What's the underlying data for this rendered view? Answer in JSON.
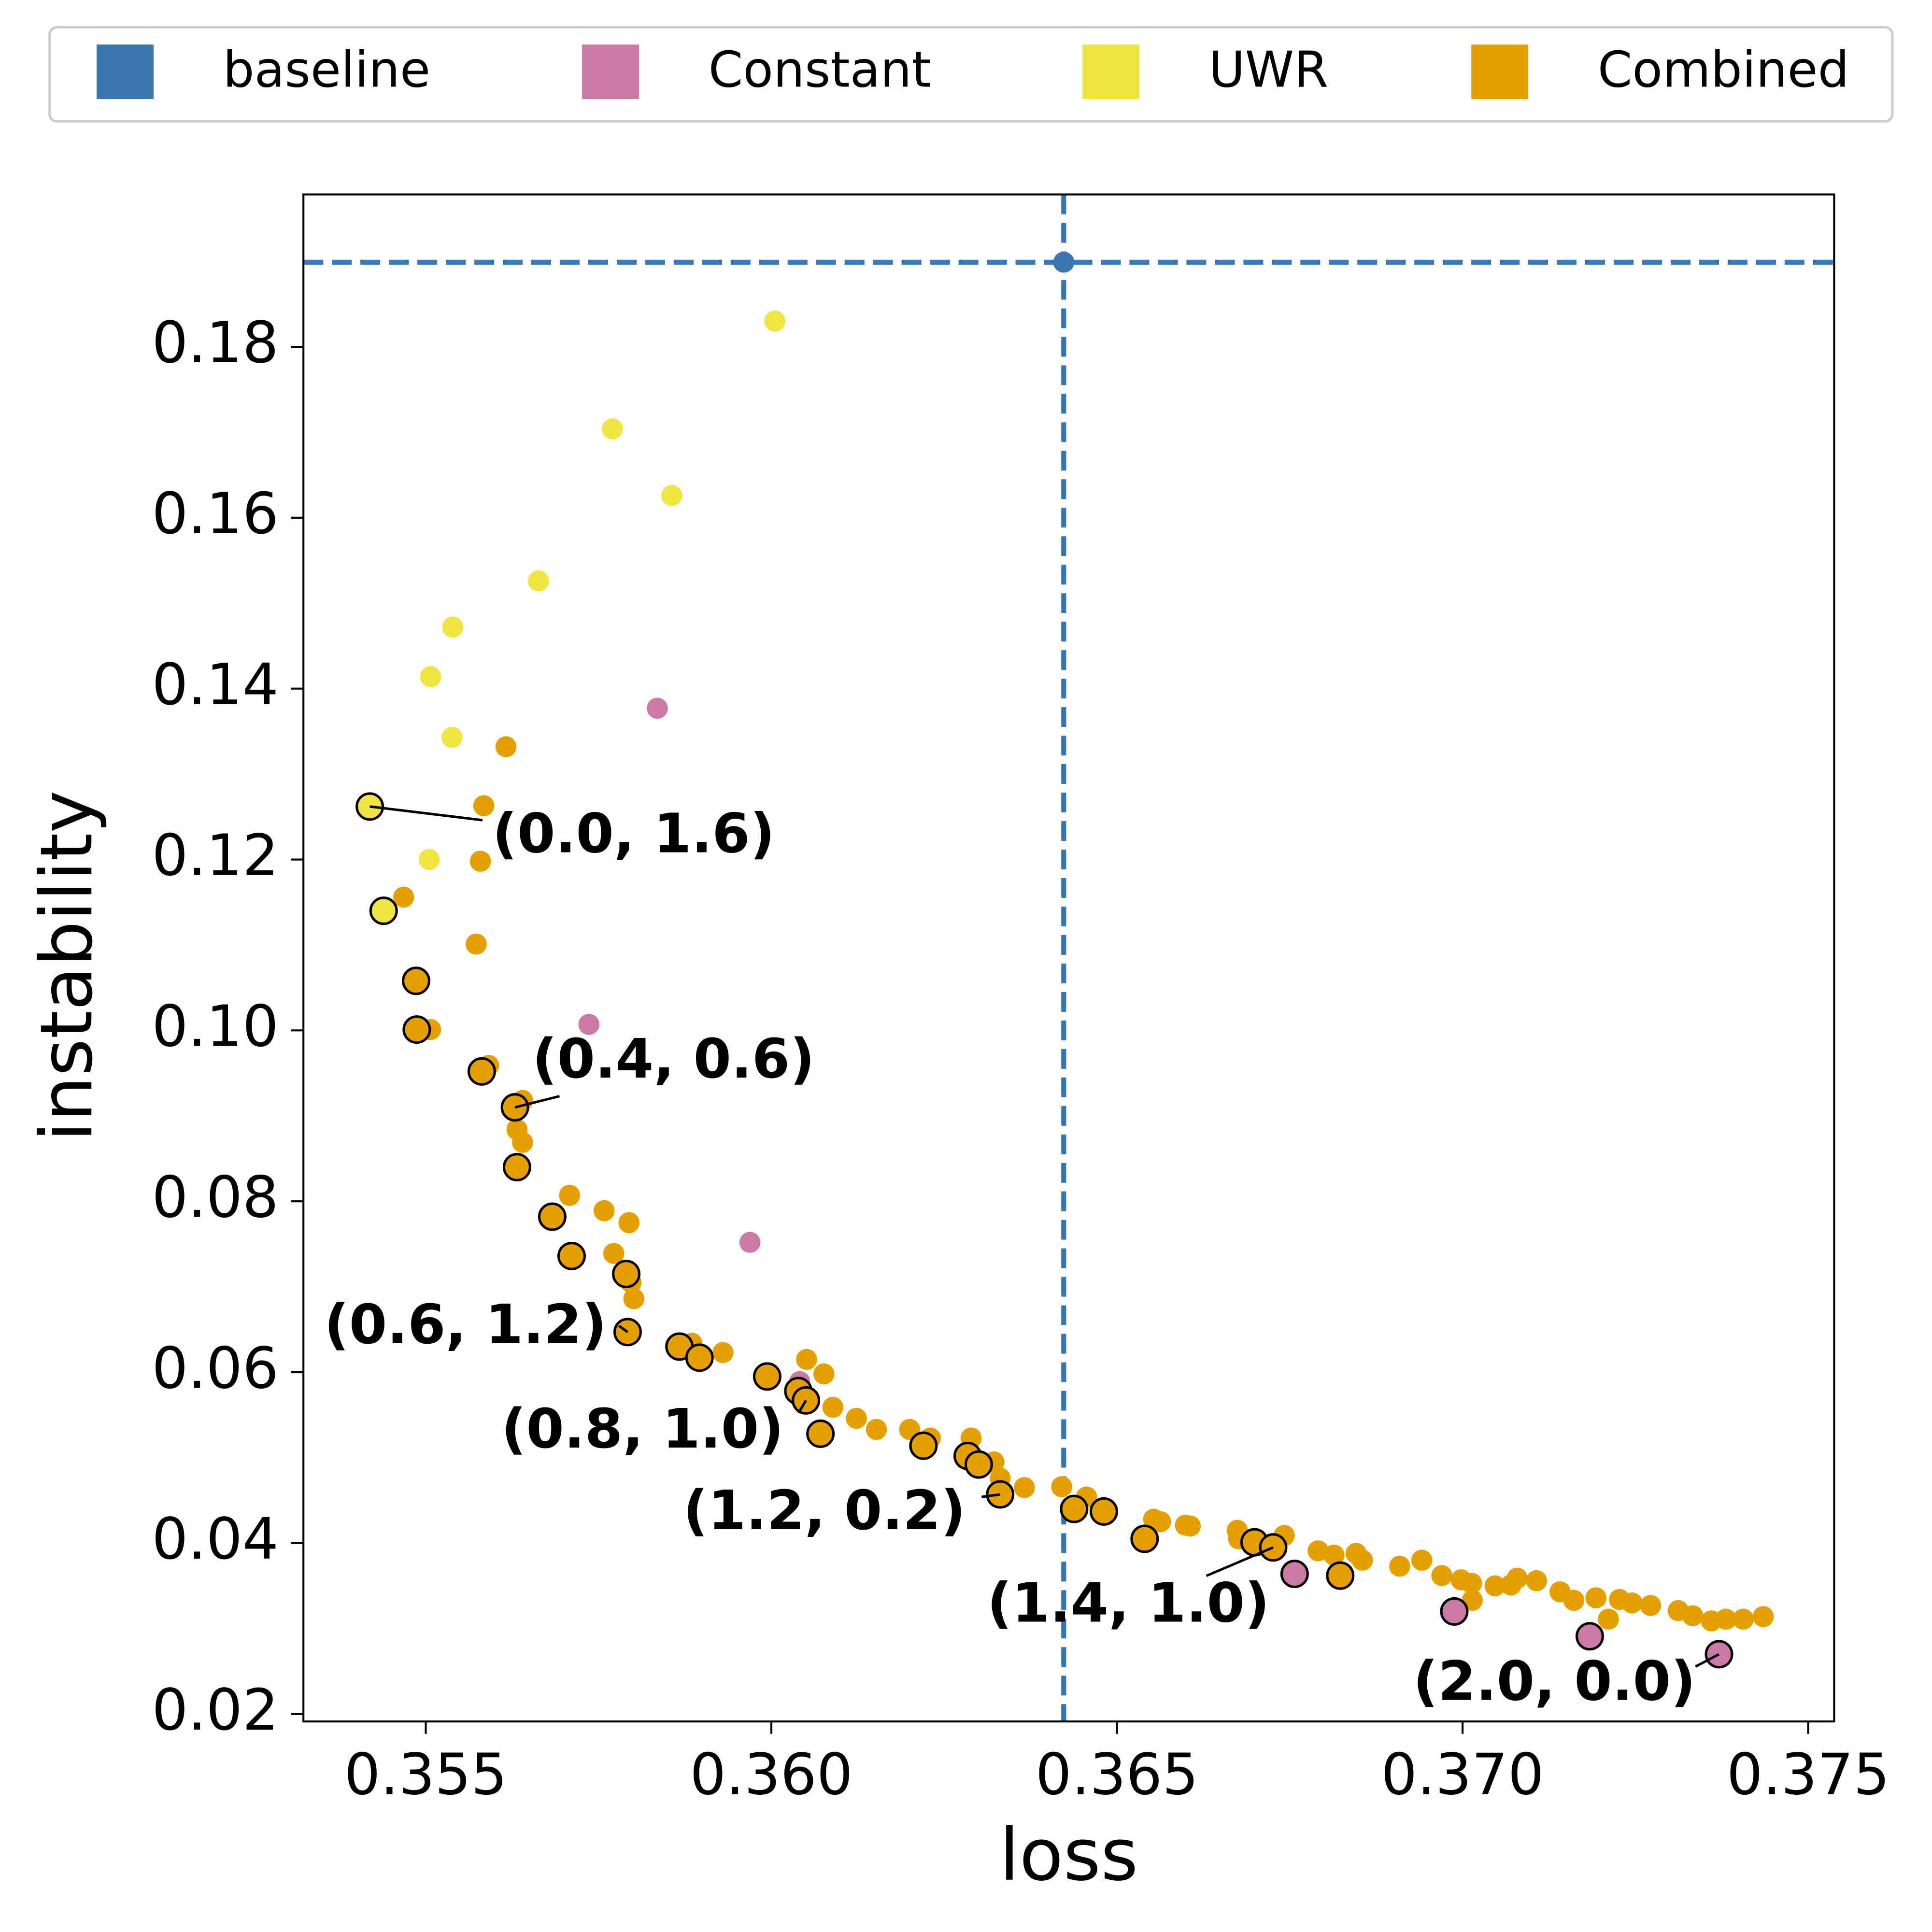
{
  "chart_data": {
    "type": "scatter",
    "xlabel": "loss",
    "ylabel": "instability",
    "xlim": [
      0.35323,
      0.375376
    ],
    "ylim": [
      0.01913,
      0.19783
    ],
    "xticks": [
      0.355,
      {
        "value": 0.36,
        "label": "0.360"
      },
      0.365,
      {
        "value": 0.37,
        "label": "0.370"
      },
      0.375
    ],
    "yticks": [
      0.02,
      0.04,
      0.06,
      0.08,
      {
        "value": 0.1,
        "label": "0.10"
      },
      0.12,
      0.14,
      0.16,
      0.18
    ],
    "legend": "top",
    "reference_lines": true,
    "series": [
      {
        "name": "baseline",
        "color": "#3a76af",
        "x": [
          0.36423
        ],
        "values": [
          0.1899
        ],
        "outlined": [
          false
        ]
      },
      {
        "name": "Constant",
        "color": "#cc79a7",
        "x": [
          0.35835,
          0.35736,
          0.35969,
          0.36041,
          0.36757,
          0.36988,
          0.37184,
          0.37371
        ],
        "values": [
          0.1377,
          0.1007,
          0.0752,
          0.0589,
          0.0364,
          0.032,
          0.0291,
          0.027
        ],
        "outlined": [
          false,
          false,
          false,
          false,
          true,
          true,
          true,
          true
        ]
      },
      {
        "name": "UWR",
        "color": "#f0e442",
        "x": [
          0.36005,
          0.3577,
          0.35856,
          0.35663,
          0.35539,
          0.35507,
          0.35538,
          0.35505,
          0.35419,
          0.35439
        ],
        "values": [
          0.183,
          0.1704,
          0.1626,
          0.1526,
          0.1472,
          0.1414,
          0.1343,
          0.12,
          0.1262,
          0.114
        ],
        "outlined": [
          false,
          false,
          false,
          false,
          false,
          false,
          false,
          false,
          true,
          true
        ]
      },
      {
        "name": "Combined",
        "color": "#e69f00",
        "x": [
          0.35616,
          0.35584,
          0.35579,
          0.35468,
          0.35573,
          0.35507,
          0.35591,
          0.3564,
          0.35632,
          0.3564,
          0.35708,
          0.35758,
          0.35794,
          0.35772,
          0.35797,
          0.35801,
          0.35885,
          0.3593,
          0.36051,
          0.36076,
          0.36089,
          0.36123,
          0.36152,
          0.362,
          0.3623,
          0.36289,
          0.36322,
          0.36331,
          0.36366,
          0.3642,
          0.36456,
          0.36553,
          0.36563,
          0.36599,
          0.36606,
          0.36674,
          0.36742,
          0.36676,
          0.36791,
          0.36814,
          0.36846,
          0.36855,
          0.36909,
          0.36941,
          0.3697,
          0.36998,
          0.37013,
          0.37014,
          0.37047,
          0.3707,
          0.37079,
          0.37107,
          0.37141,
          0.37161,
          0.37193,
          0.37211,
          0.37227,
          0.37245,
          0.37272,
          0.37312,
          0.37333,
          0.3736,
          0.37381,
          0.37406,
          0.37435,
          0.35486,
          0.35487,
          0.35581,
          0.35629,
          0.35632,
          0.35683,
          0.35711,
          0.3579,
          0.35792,
          0.35867,
          0.35896,
          0.35994,
          0.36039,
          0.3605,
          0.36071,
          0.3622,
          0.36284,
          0.363,
          0.36331,
          0.36438,
          0.36481,
          0.3654,
          0.36699,
          0.36726,
          0.36823
        ],
        "values": [
          0.1332,
          0.1263,
          0.1198,
          0.1156,
          0.1101,
          0.1001,
          0.0959,
          0.0918,
          0.0884,
          0.0869,
          0.0807,
          0.0789,
          0.0775,
          0.0739,
          0.0705,
          0.0686,
          0.0634,
          0.0623,
          0.0615,
          0.0598,
          0.0559,
          0.0546,
          0.0533,
          0.0533,
          0.0523,
          0.0523,
          0.0495,
          0.0476,
          0.0465,
          0.0466,
          0.0454,
          0.0428,
          0.0425,
          0.0421,
          0.042,
          0.0415,
          0.0409,
          0.0405,
          0.0391,
          0.0386,
          0.0388,
          0.038,
          0.0373,
          0.038,
          0.0362,
          0.0357,
          0.0353,
          0.0333,
          0.035,
          0.0351,
          0.0359,
          0.0356,
          0.0343,
          0.0333,
          0.0336,
          0.0311,
          0.0334,
          0.033,
          0.0327,
          0.0321,
          0.0315,
          0.0309,
          0.0311,
          0.0311,
          0.0314,
          0.1058,
          0.1001,
          0.0952,
          0.091,
          0.084,
          0.0782,
          0.0736,
          0.0715,
          0.0647,
          0.063,
          0.0617,
          0.0595,
          0.0578,
          0.0567,
          0.0528,
          0.0514,
          0.0502,
          0.0492,
          0.0457,
          0.044,
          0.0437,
          0.0405,
          0.0401,
          0.0395,
          0.0362
        ],
        "outlined": [
          false,
          false,
          false,
          false,
          false,
          false,
          false,
          false,
          false,
          false,
          false,
          false,
          false,
          false,
          false,
          false,
          false,
          false,
          false,
          false,
          false,
          false,
          false,
          false,
          false,
          false,
          false,
          false,
          false,
          false,
          false,
          false,
          false,
          false,
          false,
          false,
          false,
          false,
          false,
          false,
          false,
          false,
          false,
          false,
          false,
          false,
          false,
          false,
          false,
          false,
          false,
          false,
          false,
          false,
          false,
          false,
          false,
          false,
          false,
          false,
          false,
          false,
          false,
          false,
          false,
          true,
          true,
          true,
          true,
          true,
          true,
          true,
          true,
          true,
          true,
          true,
          true,
          true,
          true,
          true,
          true,
          true,
          true,
          true,
          true,
          true,
          true,
          true,
          true,
          true
        ]
      }
    ],
    "annotations": [
      {
        "text": "(0.0, 1.6)",
        "x": 0.35419,
        "y": 0.1262
      },
      {
        "text": "(0.4, 0.6)",
        "x": 0.35629,
        "y": 0.091
      },
      {
        "text": "(0.6, 1.2)",
        "x": 0.35792,
        "y": 0.0647
      },
      {
        "text": "(0.8, 1.0)",
        "x": 0.3605,
        "y": 0.0567
      },
      {
        "text": "(1.2, 0.2)",
        "x": 0.36331,
        "y": 0.0457
      },
      {
        "text": "(1.4, 1.0)",
        "x": 0.36726,
        "y": 0.0395
      },
      {
        "text": "(2.0, 0.0)",
        "x": 0.37371,
        "y": 0.027
      }
    ]
  }
}
